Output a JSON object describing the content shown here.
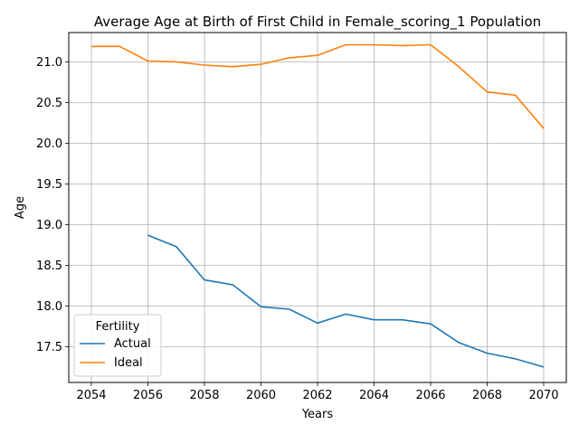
{
  "chart_data": {
    "type": "line",
    "title": "Average Age at Birth of First Child in Female_scoring_1 Population",
    "xlabel": "Years",
    "ylabel": "Age",
    "xlim": [
      2053.2,
      2070.8
    ],
    "ylim": [
      17.06,
      21.36
    ],
    "xticks": [
      2054,
      2056,
      2058,
      2060,
      2062,
      2064,
      2066,
      2068,
      2070
    ],
    "yticks": [
      17.5,
      18.0,
      18.5,
      19.0,
      19.5,
      20.0,
      20.5,
      21.0
    ],
    "grid": true,
    "legend": {
      "title": "Fertility",
      "placement": "lower-left"
    },
    "series": [
      {
        "name": "Actual",
        "color": "#1f77b4",
        "x": [
          2056,
          2057,
          2058,
          2059,
          2060,
          2061,
          2062,
          2063,
          2064,
          2065,
          2066,
          2067,
          2068,
          2069,
          2070
        ],
        "values": [
          18.87,
          18.73,
          18.32,
          18.26,
          17.99,
          17.96,
          17.79,
          17.9,
          17.83,
          17.83,
          17.78,
          17.55,
          17.42,
          17.35,
          17.25
        ]
      },
      {
        "name": "Ideal",
        "color": "#ff7f0e",
        "x": [
          2054,
          2055,
          2056,
          2057,
          2058,
          2059,
          2060,
          2061,
          2062,
          2063,
          2064,
          2065,
          2066,
          2067,
          2068,
          2069,
          2070
        ],
        "values": [
          21.19,
          21.19,
          21.01,
          21.0,
          20.96,
          20.94,
          20.97,
          21.05,
          21.08,
          21.21,
          21.21,
          21.2,
          21.21,
          20.94,
          20.63,
          20.59,
          20.18
        ]
      }
    ]
  }
}
